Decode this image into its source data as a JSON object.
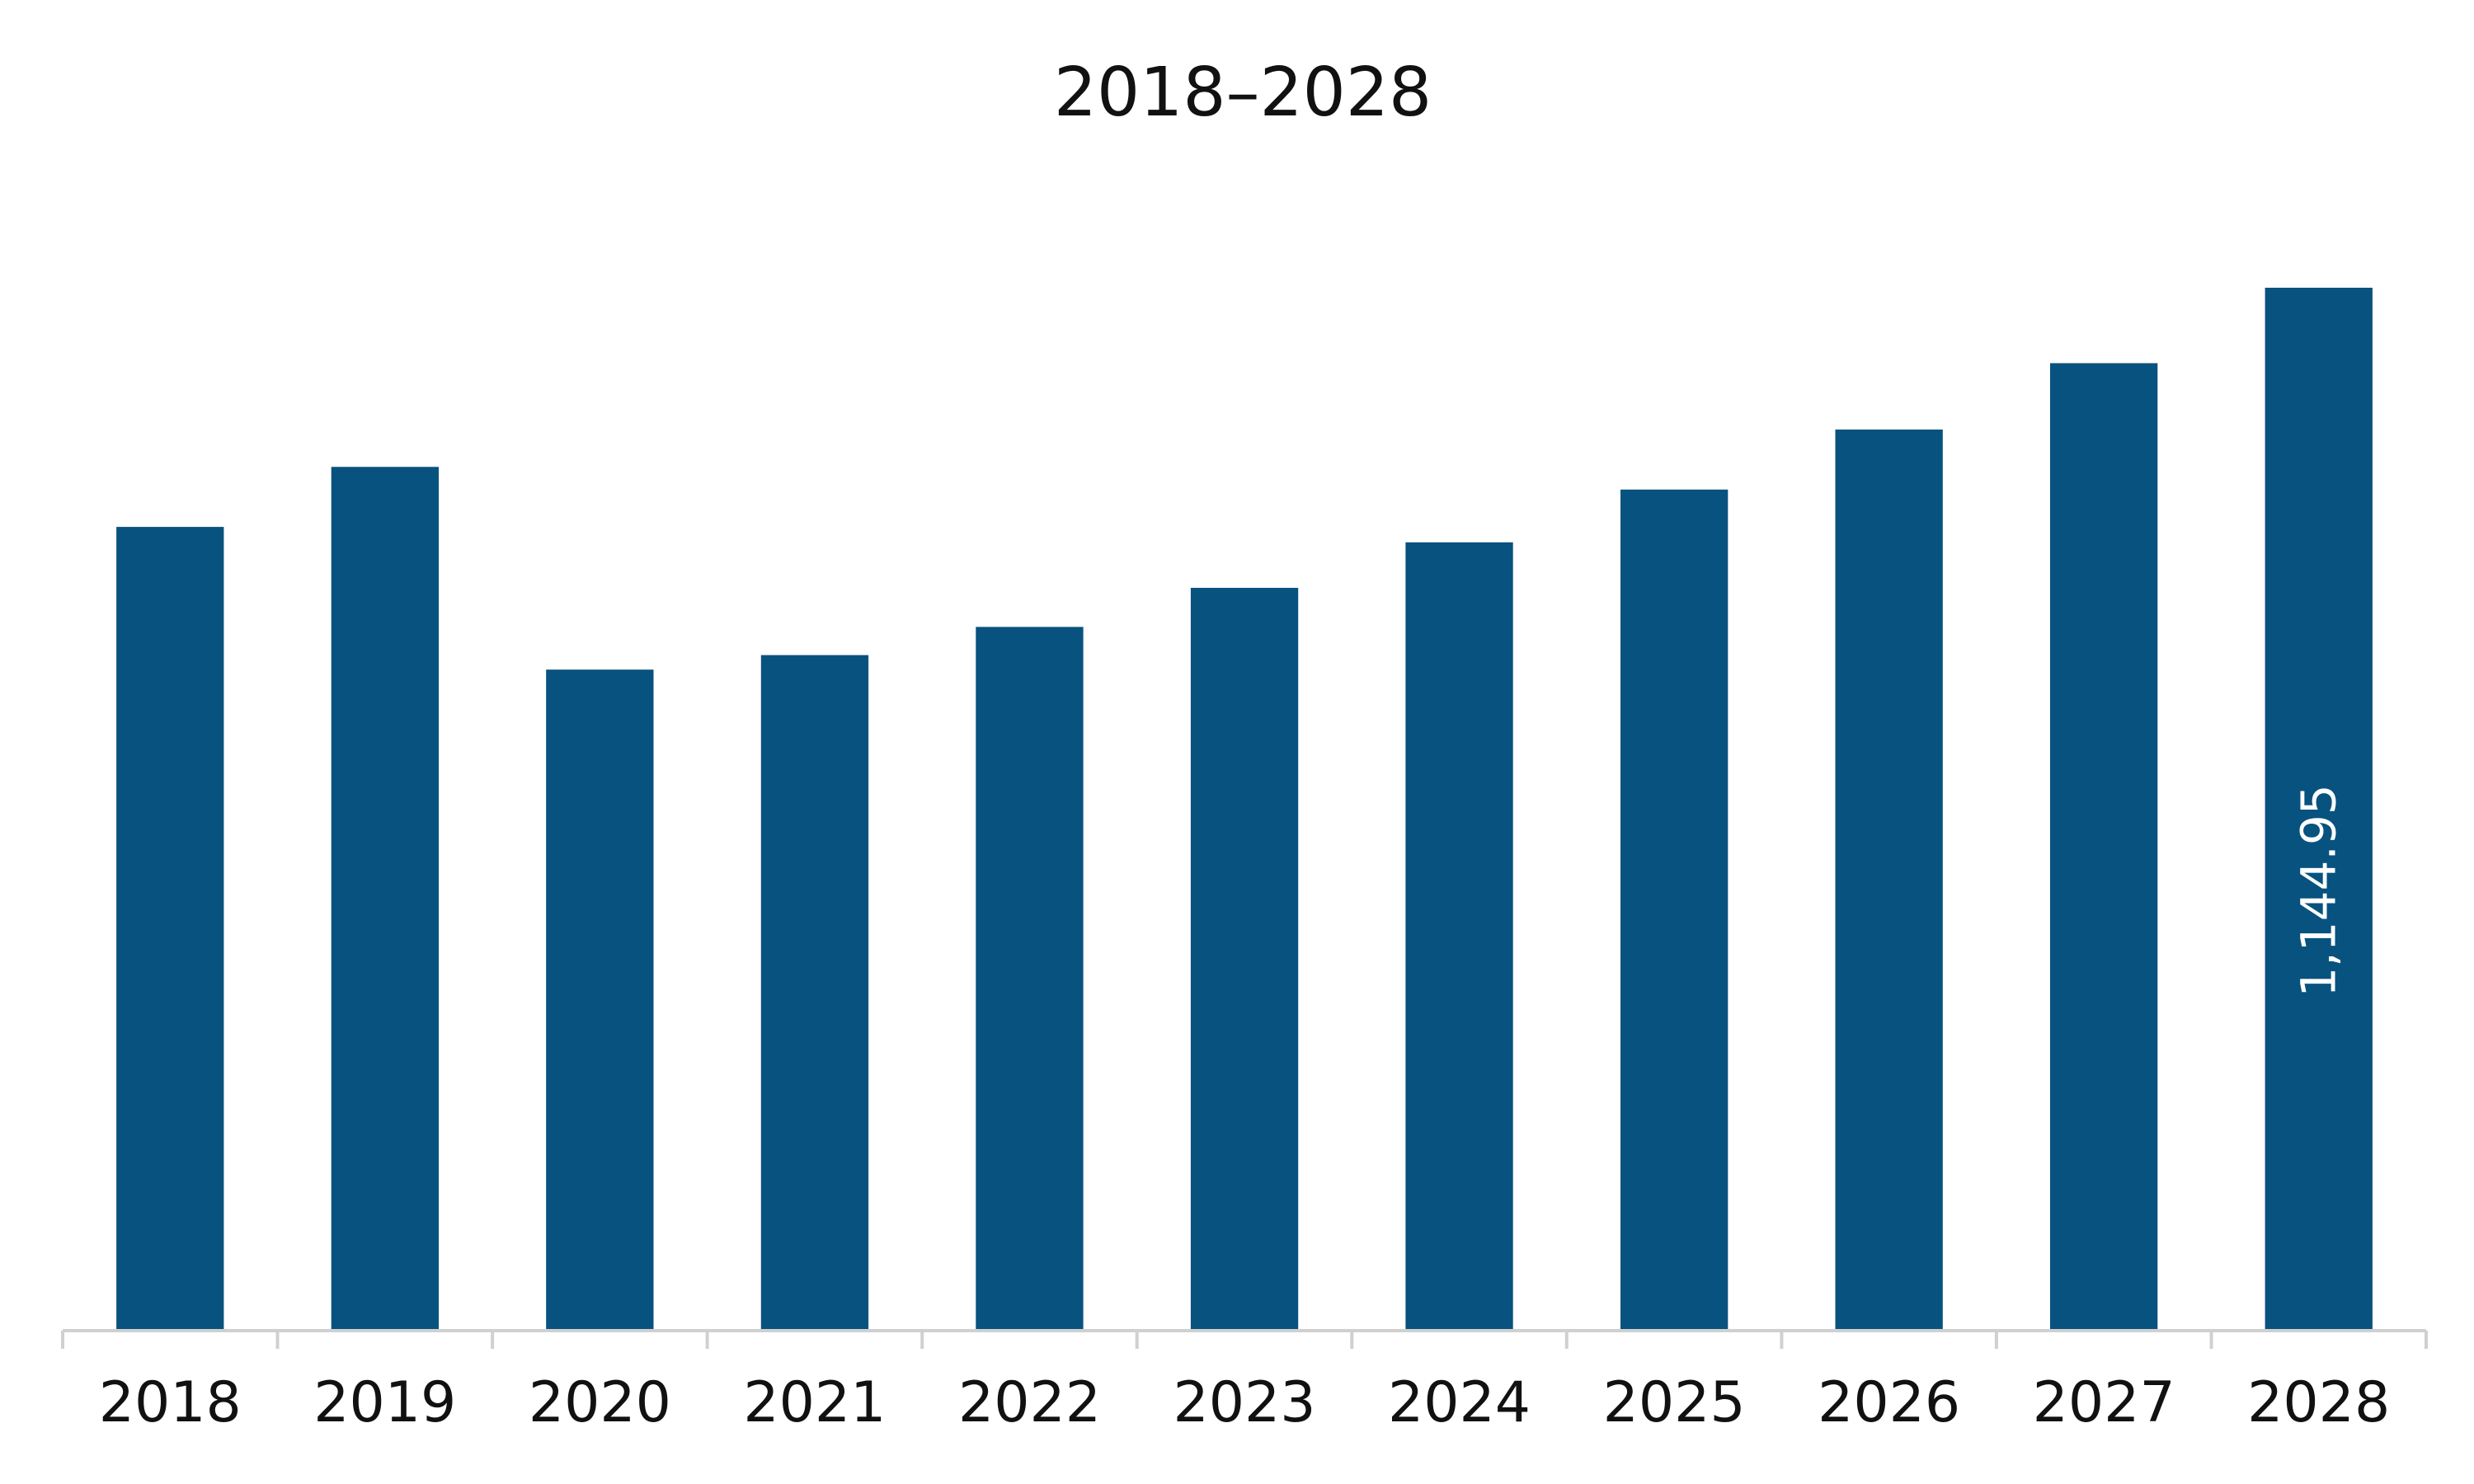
{
  "chart_data": {
    "type": "bar",
    "title": "2018–2028",
    "xlabel": "",
    "ylabel": "",
    "categories": [
      "2018",
      "2019",
      "2020",
      "2021",
      "2022",
      "2023",
      "2024",
      "2025",
      "2026",
      "2027",
      "2028"
    ],
    "values": [
      882,
      948,
      725,
      741,
      772,
      815,
      865,
      923,
      989,
      1062,
      1144.95
    ],
    "data_labels": [
      null,
      null,
      null,
      null,
      null,
      null,
      null,
      null,
      null,
      null,
      "1,144.95"
    ],
    "ylim": [
      0,
      1144.95
    ],
    "grid": false,
    "legend": "none",
    "bar_color": "#08527f"
  }
}
